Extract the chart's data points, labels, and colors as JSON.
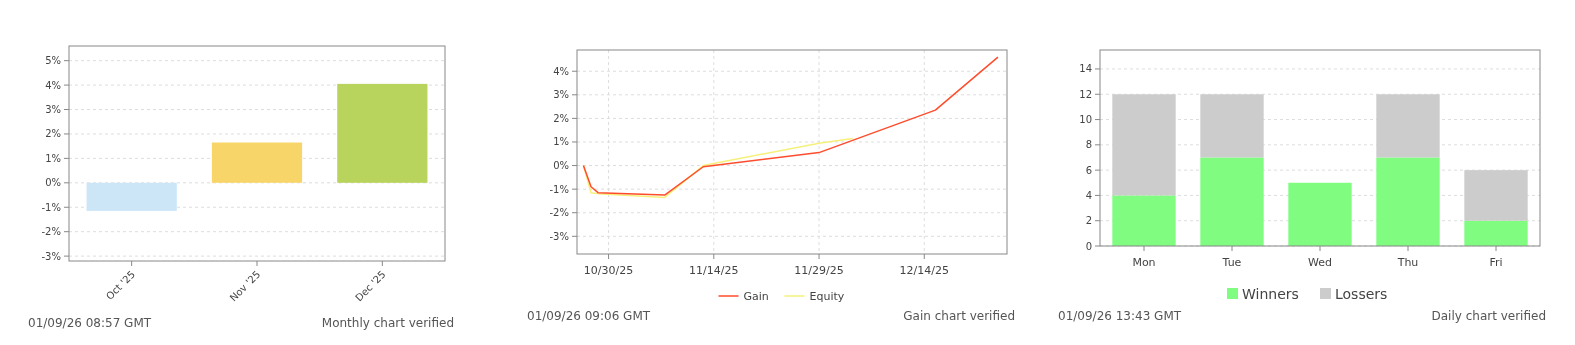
{
  "chart_data": [
    {
      "type": "bar",
      "categories": [
        "Oct '25",
        "Nov '25",
        "Dec '25"
      ],
      "values": [
        -1.15,
        1.65,
        4.05
      ],
      "colors": [
        "#cce6f8",
        "#f8d568",
        "#b8d45c"
      ],
      "ylim": [
        -3.2,
        5.6
      ],
      "yticks": [
        {
          "value": -3,
          "label": "-3%"
        },
        {
          "value": -2,
          "label": "-2%"
        },
        {
          "value": -1,
          "label": "-1%"
        },
        {
          "value": 0,
          "label": "0%"
        },
        {
          "value": 1,
          "label": "1%"
        },
        {
          "value": 2,
          "label": "2%"
        },
        {
          "value": 3,
          "label": "3%"
        },
        {
          "value": 4,
          "label": "4%"
        },
        {
          "value": 5,
          "label": "5%"
        }
      ],
      "grid": "y",
      "annotations": [
        "01/09/26 08:57 GMT",
        "Monthly chart verified"
      ]
    },
    {
      "type": "line",
      "xlim": [
        "2025-10-25T12:00",
        "2025-12-25T19:00"
      ],
      "xticks": [
        {
          "value": "2025-10-30",
          "label": "10/30/25"
        },
        {
          "value": "2025-11-14",
          "label": "11/14/25"
        },
        {
          "value": "2025-11-29",
          "label": "11/29/25"
        },
        {
          "value": "2025-12-14",
          "label": "12/14/25"
        }
      ],
      "ylim": [
        -3.75,
        4.9
      ],
      "yticks": [
        {
          "value": -3,
          "label": "-3%"
        },
        {
          "value": -2,
          "label": "-2%"
        },
        {
          "value": -1,
          "label": "-1%"
        },
        {
          "value": 0,
          "label": "0%"
        },
        {
          "value": 1,
          "label": "1%"
        },
        {
          "value": 2,
          "label": "2%"
        },
        {
          "value": 3,
          "label": "3%"
        },
        {
          "value": 4,
          "label": "4%"
        }
      ],
      "grid": true,
      "legend": "bottom",
      "series": [
        {
          "name": "Gain",
          "color": "#ff4c2c",
          "x": [
            "2025-10-26T10:00",
            "2025-10-27T12:00",
            "2025-10-28T12:00",
            "2025-11-07",
            "2025-11-12T12:00",
            "2025-11-29",
            "2025-12-15T14:00",
            "2025-12-24T12:00"
          ],
          "values": [
            0,
            -0.9,
            -1.15,
            -1.25,
            -0.05,
            0.55,
            2.35,
            4.6
          ]
        },
        {
          "name": "Equity",
          "color": "#f5f07a",
          "x": [
            "2025-10-26T10:00",
            "2025-10-27T12:00",
            "2025-10-28T12:00",
            "2025-11-07",
            "2025-11-12T12:00",
            "2025-11-29",
            "2025-12-03T19:00"
          ],
          "values": [
            0,
            -1.15,
            -1.2,
            -1.35,
            0,
            0.95,
            1.15
          ]
        }
      ],
      "annotations": [
        "01/09/26 09:06 GMT",
        "Gain chart verified"
      ]
    },
    {
      "type": "bar",
      "stacked": true,
      "categories": [
        "Mon",
        "Tue",
        "Wed",
        "Thu",
        "Fri"
      ],
      "ylim": [
        0,
        15.5
      ],
      "yticks": [
        0,
        2,
        4,
        6,
        8,
        10,
        12,
        14
      ],
      "grid": "y",
      "legend": "bottom",
      "series": [
        {
          "name": "Winners",
          "color": "#80fc80",
          "values": [
            4,
            7,
            5,
            7,
            2
          ]
        },
        {
          "name": "Lossers",
          "color": "#cccccc",
          "values": [
            8,
            5,
            0,
            5,
            4
          ]
        }
      ],
      "annotations": [
        "01/09/26 13:43 GMT",
        "Daily chart verified"
      ]
    }
  ]
}
